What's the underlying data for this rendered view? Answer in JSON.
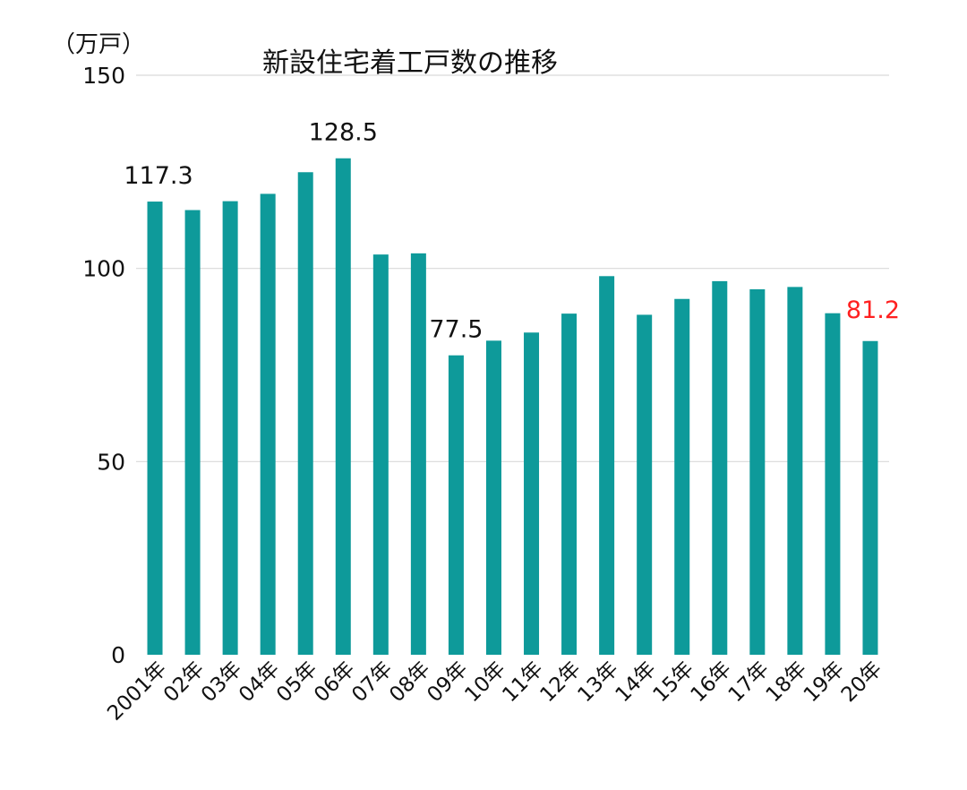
{
  "chart_data": {
    "type": "bar",
    "title": "新設住宅着工戸数の推移",
    "unit_label": "（万戸）",
    "categories": [
      "2001年",
      "02年",
      "03年",
      "04年",
      "05年",
      "06年",
      "07年",
      "08年",
      "09年",
      "10年",
      "11年",
      "12年",
      "13年",
      "14年",
      "15年",
      "16年",
      "17年",
      "18年",
      "19年",
      "20年"
    ],
    "values": [
      117.3,
      115.1,
      117.4,
      119.3,
      124.9,
      128.5,
      103.6,
      103.9,
      77.5,
      81.3,
      83.4,
      88.3,
      98.0,
      88.0,
      92.1,
      96.7,
      94.6,
      95.2,
      88.4,
      81.2
    ],
    "data_labels": [
      {
        "index": 0,
        "text": "117.3",
        "color": "#111111"
      },
      {
        "index": 5,
        "text": "128.5",
        "color": "#111111"
      },
      {
        "index": 8,
        "text": "77.5",
        "color": "#111111"
      },
      {
        "index": 19,
        "text": "81.2",
        "color": "#ff2020"
      }
    ],
    "yticks": [
      0,
      50,
      100,
      150
    ],
    "ylim": [
      0,
      150
    ],
    "grid": true,
    "bar_color": "#0e9a9a",
    "grid_color": "#d9d9d9"
  }
}
